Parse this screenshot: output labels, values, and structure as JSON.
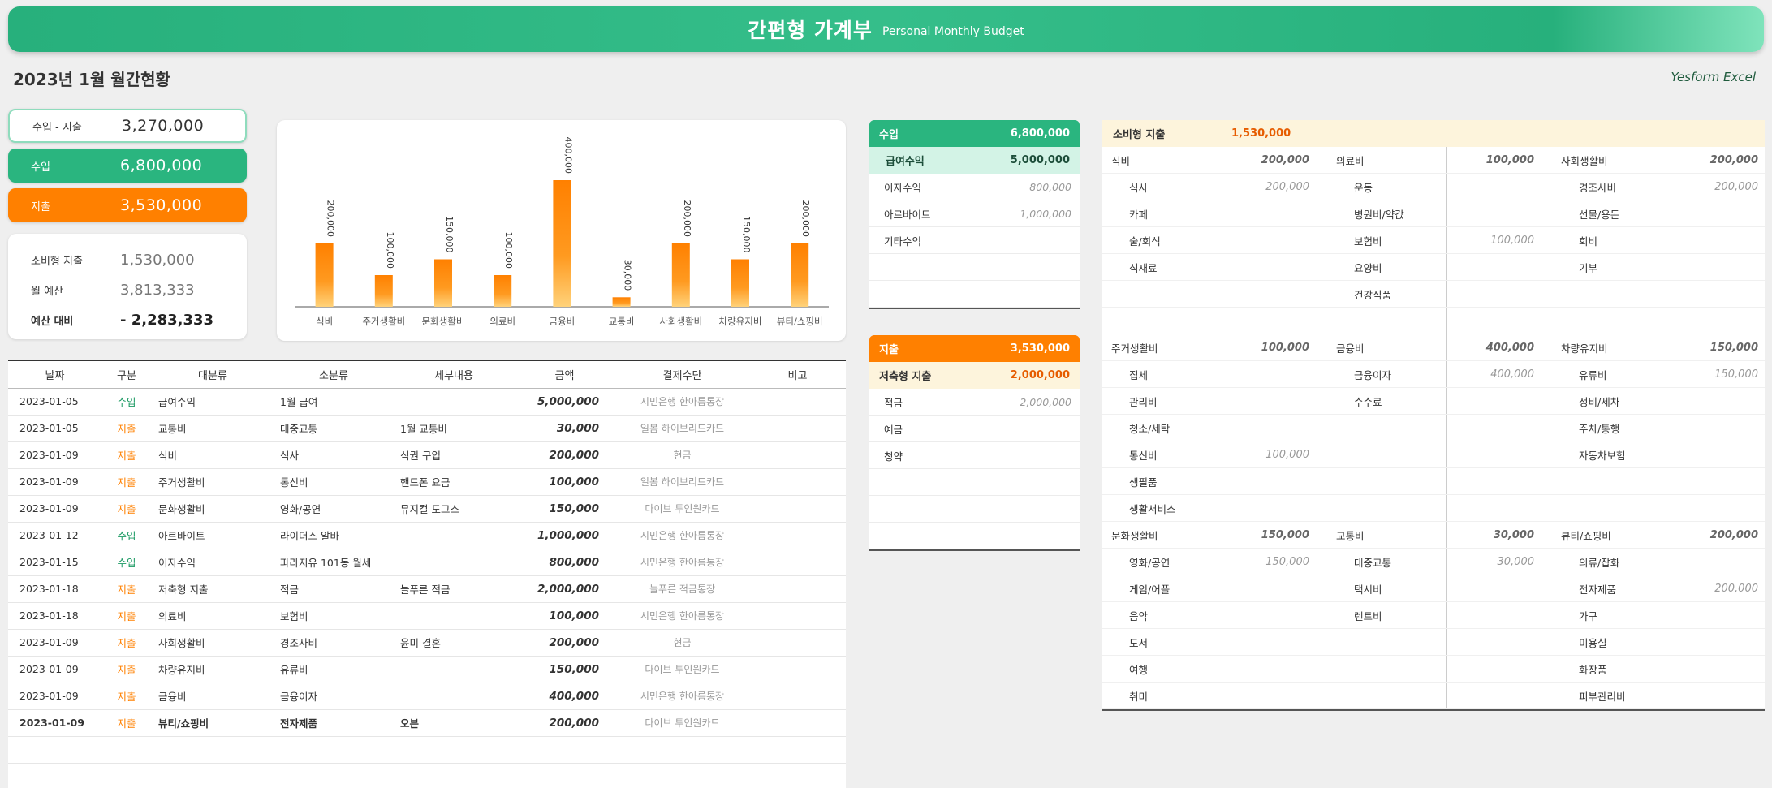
{
  "banner": {
    "title": "간편형 가계부",
    "subtitle": "Personal Monthly Budget"
  },
  "header": {
    "month_title": "2023년 1월 월간현황",
    "brand": "Yesform Excel"
  },
  "summary": {
    "net": {
      "label": "수입 - 지출",
      "value": "3,270,000"
    },
    "income": {
      "label": "수입",
      "value": "6,800,000"
    },
    "expense": {
      "label": "지출",
      "value": "3,530,000"
    }
  },
  "budget": {
    "consumption": {
      "label": "소비형 지출",
      "value": "1,530,000"
    },
    "monthly_budget": {
      "label": "월 예산",
      "value": "3,813,333"
    },
    "vs_budget": {
      "label": "예산 대비",
      "value": "- 2,283,333"
    }
  },
  "colors": {
    "green": "#2ab57f",
    "orange": "#ff8000",
    "cream": "#fdf4dc",
    "mint": "#d3f3e6"
  },
  "chart_data": {
    "type": "bar",
    "categories": [
      "식비",
      "주거생활비",
      "문화생활비",
      "의료비",
      "금융비",
      "교통비",
      "사회생활비",
      "차량유지비",
      "뷰티/쇼핑비"
    ],
    "values": [
      200000,
      100000,
      150000,
      100000,
      400000,
      30000,
      200000,
      150000,
      200000
    ],
    "value_labels": [
      "200,000",
      "100,000",
      "150,000",
      "100,000",
      "400,000",
      "30,000",
      "200,000",
      "150,000",
      "200,000"
    ],
    "ylim": [
      0,
      500000
    ],
    "title": "",
    "xlabel": "",
    "ylabel": "",
    "grid": false
  },
  "ledger": {
    "headers": [
      "날짜",
      "구분",
      "대분류",
      "소분류",
      "세부내용",
      "금액",
      "결제수단",
      "비고"
    ],
    "rows": [
      {
        "date": "2023-01-05",
        "type": "수입",
        "major": "급여수익",
        "minor": "1월 급여",
        "detail": "",
        "amount": "5,000,000",
        "payment": "시민은행 한아름통장",
        "note": ""
      },
      {
        "date": "2023-01-05",
        "type": "지출",
        "major": "교통비",
        "minor": "대중교통",
        "detail": "1월 교통비",
        "amount": "30,000",
        "payment": "일봄 하이브리드카드",
        "note": ""
      },
      {
        "date": "2023-01-09",
        "type": "지출",
        "major": "식비",
        "minor": "식사",
        "detail": "식권 구입",
        "amount": "200,000",
        "payment": "현금",
        "note": ""
      },
      {
        "date": "2023-01-09",
        "type": "지출",
        "major": "주거생활비",
        "minor": "통신비",
        "detail": "핸드폰 요금",
        "amount": "100,000",
        "payment": "일봄 하이브리드카드",
        "note": ""
      },
      {
        "date": "2023-01-09",
        "type": "지출",
        "major": "문화생활비",
        "minor": "영화/공연",
        "detail": "뮤지컬 도그스",
        "amount": "150,000",
        "payment": "다이브 투인원카드",
        "note": ""
      },
      {
        "date": "2023-01-12",
        "type": "수입",
        "major": "아르바이트",
        "minor": "라이더스 알바",
        "detail": "",
        "amount": "1,000,000",
        "payment": "시민은행 한아름통장",
        "note": ""
      },
      {
        "date": "2023-01-15",
        "type": "수입",
        "major": "이자수익",
        "minor": "파라지유 101동 월세",
        "detail": "",
        "amount": "800,000",
        "payment": "시민은행 한아름통장",
        "note": ""
      },
      {
        "date": "2023-01-18",
        "type": "지출",
        "major": "저축형 지출",
        "minor": "적금",
        "detail": "늘푸른 적금",
        "amount": "2,000,000",
        "payment": "늘푸른 적금통장",
        "note": ""
      },
      {
        "date": "2023-01-18",
        "type": "지출",
        "major": "의료비",
        "minor": "보험비",
        "detail": "",
        "amount": "100,000",
        "payment": "시민은행 한아름통장",
        "note": ""
      },
      {
        "date": "2023-01-09",
        "type": "지출",
        "major": "사회생활비",
        "minor": "경조사비",
        "detail": "윤미 결혼",
        "amount": "200,000",
        "payment": "현금",
        "note": ""
      },
      {
        "date": "2023-01-09",
        "type": "지출",
        "major": "차량유지비",
        "minor": "유류비",
        "detail": "",
        "amount": "150,000",
        "payment": "다이브 투인원카드",
        "note": ""
      },
      {
        "date": "2023-01-09",
        "type": "지출",
        "major": "금융비",
        "minor": "금융이자",
        "detail": "",
        "amount": "400,000",
        "payment": "시민은행 한아름통장",
        "note": ""
      },
      {
        "date": "2023-01-09",
        "type": "지출",
        "major": "뷰티/쇼핑비",
        "minor": "전자제품",
        "detail": "오븐",
        "amount": "200,000",
        "payment": "다이브 투인원카드",
        "note": ""
      }
    ]
  },
  "income_box": {
    "header": {
      "label": "수입",
      "value": "6,800,000"
    },
    "sub": {
      "label": "급여수익",
      "value": "5,000,000"
    },
    "rows": [
      {
        "name": "이자수익",
        "value": "800,000"
      },
      {
        "name": "아르바이트",
        "value": "1,000,000"
      },
      {
        "name": "기타수익",
        "value": ""
      },
      {
        "name": "",
        "value": ""
      },
      {
        "name": "",
        "value": ""
      }
    ]
  },
  "expense_box": {
    "header": {
      "label": "지출",
      "value": "3,530,000"
    },
    "sub": {
      "label": "저축형 지출",
      "value": "2,000,000"
    },
    "rows": [
      {
        "name": "적금",
        "value": "2,000,000"
      },
      {
        "name": "예금",
        "value": ""
      },
      {
        "name": "청약",
        "value": ""
      },
      {
        "name": "",
        "value": ""
      },
      {
        "name": "",
        "value": ""
      },
      {
        "name": "",
        "value": ""
      }
    ]
  },
  "consumption_grid": {
    "header": {
      "label": "소비형 지출",
      "value": "1,530,000"
    },
    "blocks": [
      [
        {
          "name": "식비",
          "value": "200,000",
          "items": [
            {
              "name": "식사",
              "value": "200,000"
            },
            {
              "name": "카페",
              "value": ""
            },
            {
              "name": "술/회식",
              "value": ""
            },
            {
              "name": "식재료",
              "value": ""
            },
            {
              "name": "",
              "value": ""
            },
            {
              "name": "",
              "value": ""
            }
          ]
        },
        {
          "name": "의료비",
          "value": "100,000",
          "items": [
            {
              "name": "운동",
              "value": ""
            },
            {
              "name": "병원비/약값",
              "value": ""
            },
            {
              "name": "보험비",
              "value": "100,000"
            },
            {
              "name": "요양비",
              "value": ""
            },
            {
              "name": "건강식품",
              "value": ""
            },
            {
              "name": "",
              "value": ""
            }
          ]
        },
        {
          "name": "사회생활비",
          "value": "200,000",
          "items": [
            {
              "name": "경조사비",
              "value": "200,000"
            },
            {
              "name": "선물/용돈",
              "value": ""
            },
            {
              "name": "회비",
              "value": ""
            },
            {
              "name": "기부",
              "value": ""
            },
            {
              "name": "",
              "value": ""
            },
            {
              "name": "",
              "value": ""
            }
          ]
        }
      ],
      [
        {
          "name": "주거생활비",
          "value": "100,000",
          "items": [
            {
              "name": "집세",
              "value": ""
            },
            {
              "name": "관리비",
              "value": ""
            },
            {
              "name": "청소/세탁",
              "value": ""
            },
            {
              "name": "통신비",
              "value": "100,000"
            },
            {
              "name": "생필품",
              "value": ""
            },
            {
              "name": "생활서비스",
              "value": ""
            }
          ]
        },
        {
          "name": "금융비",
          "value": "400,000",
          "items": [
            {
              "name": "금융이자",
              "value": "400,000"
            },
            {
              "name": "수수료",
              "value": ""
            },
            {
              "name": "",
              "value": ""
            },
            {
              "name": "",
              "value": ""
            },
            {
              "name": "",
              "value": ""
            },
            {
              "name": "",
              "value": ""
            }
          ]
        },
        {
          "name": "차량유지비",
          "value": "150,000",
          "items": [
            {
              "name": "유류비",
              "value": "150,000"
            },
            {
              "name": "정비/세차",
              "value": ""
            },
            {
              "name": "주차/통행",
              "value": ""
            },
            {
              "name": "자동차보험",
              "value": ""
            },
            {
              "name": "",
              "value": ""
            },
            {
              "name": "",
              "value": ""
            }
          ]
        }
      ],
      [
        {
          "name": "문화생활비",
          "value": "150,000",
          "items": [
            {
              "name": "영화/공연",
              "value": "150,000"
            },
            {
              "name": "게임/어플",
              "value": ""
            },
            {
              "name": "음악",
              "value": ""
            },
            {
              "name": "도서",
              "value": ""
            },
            {
              "name": "여행",
              "value": ""
            },
            {
              "name": "취미",
              "value": ""
            }
          ]
        },
        {
          "name": "교통비",
          "value": "30,000",
          "items": [
            {
              "name": "대중교통",
              "value": "30,000"
            },
            {
              "name": "택시비",
              "value": ""
            },
            {
              "name": "렌트비",
              "value": ""
            },
            {
              "name": "",
              "value": ""
            },
            {
              "name": "",
              "value": ""
            },
            {
              "name": "",
              "value": ""
            }
          ]
        },
        {
          "name": "뷰티/쇼핑비",
          "value": "200,000",
          "items": [
            {
              "name": "의류/잡화",
              "value": ""
            },
            {
              "name": "전자제품",
              "value": "200,000"
            },
            {
              "name": "가구",
              "value": ""
            },
            {
              "name": "미용실",
              "value": ""
            },
            {
              "name": "화장품",
              "value": ""
            },
            {
              "name": "피부관리비",
              "value": ""
            }
          ]
        }
      ]
    ]
  }
}
